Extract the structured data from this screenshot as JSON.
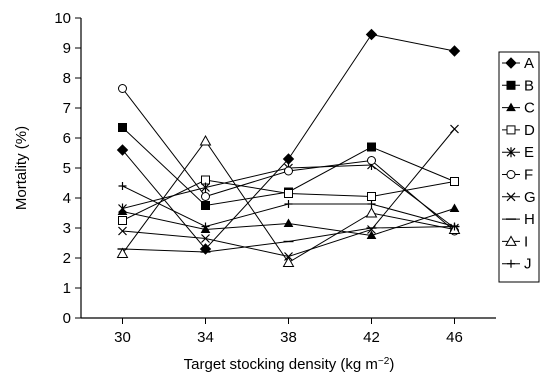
{
  "chart_data": {
    "type": "line",
    "title": "",
    "xlabel": "Target stocking density (kg m",
    "xlabel_unit_exponent": "−2",
    "xlabel_suffix": ")",
    "ylabel": "Mortality (%)",
    "x": [
      30,
      34,
      38,
      42,
      46
    ],
    "x_tick_labels": [
      "30",
      "34",
      "38",
      "42",
      "46"
    ],
    "xlim": [
      28,
      48
    ],
    "ylim": [
      0,
      10
    ],
    "y_ticks": [
      0,
      1,
      2,
      3,
      4,
      5,
      6,
      7,
      8,
      9,
      10
    ],
    "y_tick_labels": [
      "0",
      "1",
      "2",
      "3",
      "4",
      "5",
      "6",
      "7",
      "8",
      "9",
      "10"
    ],
    "grid": false,
    "legend_position": "right",
    "series": [
      {
        "name": "A",
        "marker": "diamond-filled",
        "values": [
          5.6,
          2.3,
          5.3,
          9.45,
          8.9
        ]
      },
      {
        "name": "B",
        "marker": "square-filled",
        "values": [
          6.35,
          3.75,
          4.2,
          5.7,
          4.55
        ]
      },
      {
        "name": "C",
        "marker": "triangle-filled",
        "values": [
          3.55,
          2.95,
          3.15,
          2.75,
          3.65
        ]
      },
      {
        "name": "D",
        "marker": "square-open",
        "values": [
          3.25,
          4.6,
          4.15,
          4.05,
          4.55
        ]
      },
      {
        "name": "E",
        "marker": "star",
        "values": [
          3.65,
          4.35,
          5.0,
          5.1,
          3.0
        ]
      },
      {
        "name": "F",
        "marker": "circle-open",
        "values": [
          7.65,
          4.05,
          4.9,
          5.25,
          2.9
        ]
      },
      {
        "name": "G",
        "marker": "x",
        "values": [
          2.9,
          2.65,
          2.05,
          2.95,
          6.3
        ]
      },
      {
        "name": "H",
        "marker": "dash",
        "values": [
          2.3,
          2.2,
          2.55,
          3.0,
          3.05
        ]
      },
      {
        "name": "I",
        "marker": "triangle-open",
        "values": [
          2.15,
          5.9,
          1.85,
          3.5,
          2.95
        ]
      },
      {
        "name": "J",
        "marker": "plus",
        "values": [
          4.4,
          3.05,
          3.8,
          3.8,
          3.05
        ]
      }
    ]
  }
}
